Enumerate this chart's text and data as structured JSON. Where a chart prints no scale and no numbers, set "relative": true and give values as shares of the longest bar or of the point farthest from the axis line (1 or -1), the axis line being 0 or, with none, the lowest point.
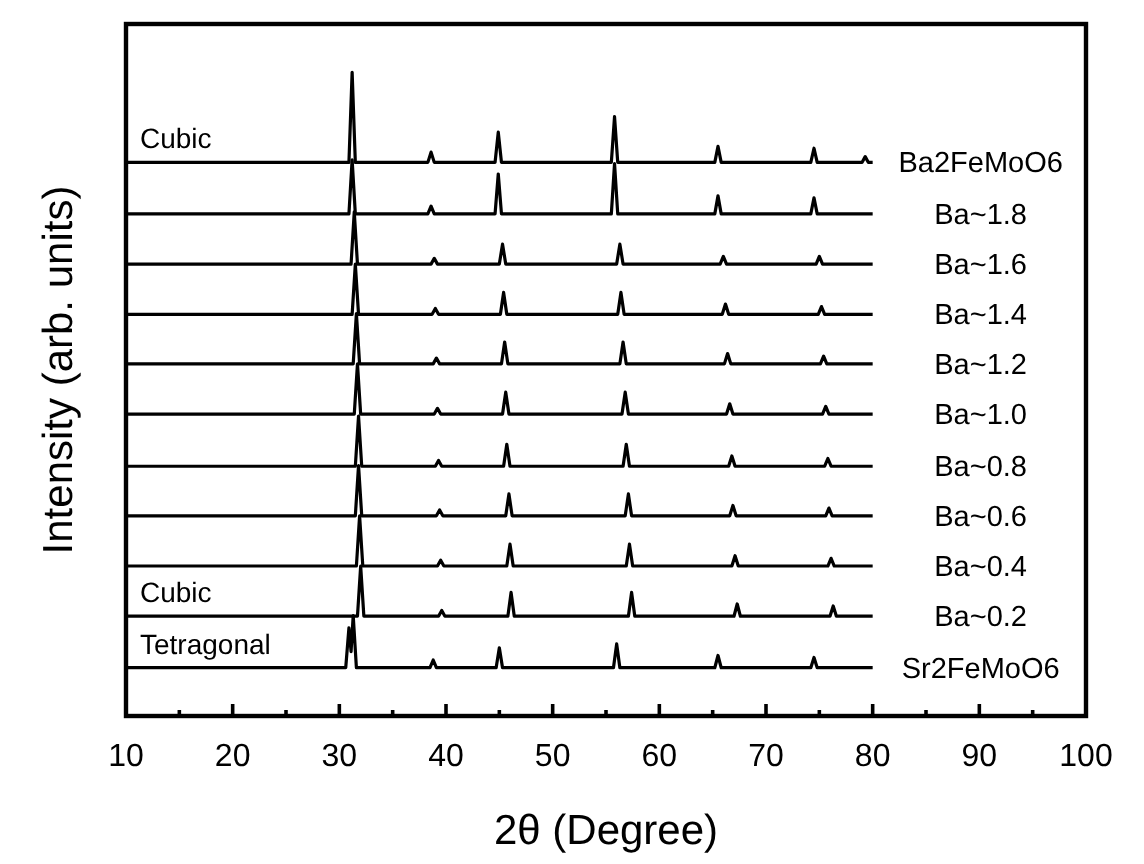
{
  "chart_data": {
    "type": "line",
    "relative": true,
    "xlabel": "2θ (Degree)",
    "ylabel": "Intensity (arb. units)",
    "xlim": [
      10,
      100
    ],
    "xticks": [
      10,
      {
        "value": 15,
        "label": null
      },
      20,
      {
        "value": 25,
        "label": null
      },
      30,
      {
        "value": 35,
        "label": null
      },
      40,
      {
        "value": 45,
        "label": null
      },
      50,
      {
        "value": 55,
        "label": null
      },
      60,
      {
        "value": 65,
        "label": null
      },
      70,
      {
        "value": 75,
        "label": null
      },
      80,
      {
        "value": 85,
        "label": null
      },
      90,
      {
        "value": 95,
        "label": null
      },
      100
    ],
    "annotations": [
      "Cubic",
      "Cubic",
      "Tetragonal"
    ],
    "series": [
      {
        "name": "Ba2FeMoO6",
        "color": "#000000",
        "x": [
          10,
          30.9,
          31.2,
          31.5,
          38.3,
          38.6,
          38.9,
          44.6,
          44.9,
          45.2,
          55.5,
          55.8,
          56.1,
          65.2,
          65.5,
          65.8,
          74.2,
          74.5,
          74.8,
          79.0,
          79.3,
          79.6,
          80
        ],
        "values": [
          0.86,
          0.86,
          1.0,
          0.86,
          0.86,
          0.876,
          0.86,
          0.86,
          0.907,
          0.86,
          0.86,
          0.931,
          0.86,
          0.86,
          0.885,
          0.86,
          0.86,
          0.882,
          0.86,
          0.86,
          0.869,
          0.86,
          0.86
        ]
      },
      {
        "name": "Ba~1.8",
        "color": "#000000",
        "x": [
          10,
          30.9,
          31.2,
          31.5,
          38.3,
          38.6,
          38.9,
          44.6,
          44.9,
          45.2,
          55.5,
          55.8,
          56.1,
          65.2,
          65.5,
          65.8,
          74.2,
          74.5,
          74.8,
          80
        ],
        "values": [
          0.78,
          0.78,
          0.864,
          0.78,
          0.78,
          0.792,
          0.78,
          0.78,
          0.842,
          0.78,
          0.78,
          0.858,
          0.78,
          0.78,
          0.808,
          0.78,
          0.78,
          0.805,
          0.78,
          0.78
        ]
      },
      {
        "name": "Ba~1.6",
        "color": "#000000",
        "x": [
          10,
          31.1,
          31.4,
          31.7,
          38.6,
          38.9,
          39.2,
          45.0,
          45.3,
          45.6,
          56.0,
          56.3,
          56.6,
          65.7,
          66.0,
          66.3,
          74.7,
          75.0,
          75.3,
          80
        ],
        "values": [
          0.702,
          0.702,
          0.783,
          0.702,
          0.702,
          0.711,
          0.702,
          0.702,
          0.733,
          0.702,
          0.702,
          0.733,
          0.702,
          0.702,
          0.714,
          0.702,
          0.702,
          0.714,
          0.702,
          0.702
        ]
      },
      {
        "name": "Ba~1.4",
        "color": "#000000",
        "x": [
          10,
          31.2,
          31.5,
          31.8,
          38.7,
          39.0,
          39.3,
          45.1,
          45.4,
          45.7,
          56.1,
          56.4,
          56.7,
          65.9,
          66.2,
          66.5,
          74.9,
          75.2,
          75.5,
          80
        ],
        "values": [
          0.624,
          0.624,
          0.702,
          0.624,
          0.624,
          0.633,
          0.624,
          0.624,
          0.658,
          0.624,
          0.624,
          0.658,
          0.624,
          0.624,
          0.64,
          0.624,
          0.624,
          0.636,
          0.624,
          0.624
        ]
      },
      {
        "name": "Ba~1.2",
        "color": "#000000",
        "x": [
          10,
          31.3,
          31.6,
          31.9,
          38.8,
          39.1,
          39.4,
          45.2,
          45.5,
          45.8,
          56.3,
          56.6,
          56.9,
          66.1,
          66.4,
          66.7,
          75.1,
          75.4,
          75.7,
          80
        ],
        "values": [
          0.547,
          0.547,
          0.625,
          0.547,
          0.547,
          0.556,
          0.547,
          0.547,
          0.581,
          0.547,
          0.547,
          0.581,
          0.547,
          0.547,
          0.563,
          0.547,
          0.547,
          0.559,
          0.547,
          0.547
        ]
      },
      {
        "name": "Ba~1.0",
        "color": "#000000",
        "x": [
          10,
          31.4,
          31.7,
          32.0,
          38.9,
          39.2,
          39.5,
          45.3,
          45.6,
          45.9,
          56.5,
          56.8,
          57.1,
          66.3,
          66.6,
          66.9,
          75.3,
          75.6,
          75.9,
          80
        ],
        "values": [
          0.469,
          0.469,
          0.547,
          0.469,
          0.469,
          0.478,
          0.469,
          0.469,
          0.503,
          0.469,
          0.469,
          0.503,
          0.469,
          0.469,
          0.485,
          0.469,
          0.469,
          0.481,
          0.469,
          0.469
        ]
      },
      {
        "name": "Ba~0.8",
        "color": "#000000",
        "x": [
          10,
          31.5,
          31.8,
          32.1,
          39.0,
          39.3,
          39.6,
          45.4,
          45.7,
          46.0,
          56.6,
          56.9,
          57.2,
          66.5,
          66.8,
          67.1,
          75.5,
          75.8,
          76.1,
          80
        ],
        "values": [
          0.388,
          0.388,
          0.466,
          0.388,
          0.388,
          0.397,
          0.388,
          0.388,
          0.422,
          0.388,
          0.388,
          0.422,
          0.388,
          0.388,
          0.404,
          0.388,
          0.388,
          0.4,
          0.388,
          0.388
        ]
      },
      {
        "name": "Ba~0.6",
        "color": "#000000",
        "x": [
          10,
          31.5,
          31.8,
          32.1,
          39.1,
          39.4,
          39.7,
          45.6,
          45.9,
          46.2,
          56.8,
          57.1,
          57.4,
          66.6,
          66.9,
          67.2,
          75.6,
          75.9,
          76.2,
          80
        ],
        "values": [
          0.311,
          0.311,
          0.389,
          0.311,
          0.311,
          0.32,
          0.311,
          0.311,
          0.345,
          0.311,
          0.311,
          0.345,
          0.311,
          0.311,
          0.327,
          0.311,
          0.311,
          0.323,
          0.311,
          0.311
        ]
      },
      {
        "name": "Ba~0.4",
        "color": "#000000",
        "x": [
          10,
          31.6,
          31.9,
          32.2,
          39.2,
          39.5,
          39.8,
          45.7,
          46.0,
          46.3,
          56.9,
          57.2,
          57.5,
          66.8,
          67.1,
          67.4,
          75.8,
          76.1,
          76.4,
          80
        ],
        "values": [
          0.233,
          0.233,
          0.311,
          0.233,
          0.233,
          0.242,
          0.233,
          0.233,
          0.267,
          0.233,
          0.233,
          0.267,
          0.233,
          0.233,
          0.249,
          0.233,
          0.233,
          0.245,
          0.233,
          0.233
        ]
      },
      {
        "name": "Ba~0.2",
        "color": "#000000",
        "x": [
          10,
          31.7,
          32.0,
          32.3,
          39.3,
          39.6,
          39.9,
          45.8,
          46.1,
          46.4,
          57.1,
          57.4,
          57.7,
          67.0,
          67.3,
          67.6,
          76.0,
          76.3,
          76.6,
          80
        ],
        "values": [
          0.155,
          0.155,
          0.233,
          0.155,
          0.155,
          0.164,
          0.155,
          0.155,
          0.192,
          0.155,
          0.155,
          0.192,
          0.155,
          0.155,
          0.174,
          0.155,
          0.155,
          0.171,
          0.155,
          0.155
        ]
      },
      {
        "name": "Sr2FeMoO6",
        "color": "#000000",
        "x": [
          10,
          30.6,
          30.9,
          31.1,
          31.3,
          31.6,
          38.5,
          38.8,
          39.1,
          44.7,
          45.0,
          45.3,
          55.7,
          56.0,
          56.3,
          65.2,
          65.5,
          65.8,
          74.2,
          74.5,
          74.8,
          80
        ],
        "values": [
          0.075,
          0.075,
          0.137,
          0.1,
          0.156,
          0.075,
          0.075,
          0.087,
          0.075,
          0.075,
          0.106,
          0.075,
          0.075,
          0.112,
          0.075,
          0.075,
          0.094,
          0.075,
          0.075,
          0.091,
          0.075,
          0.075
        ]
      }
    ]
  }
}
